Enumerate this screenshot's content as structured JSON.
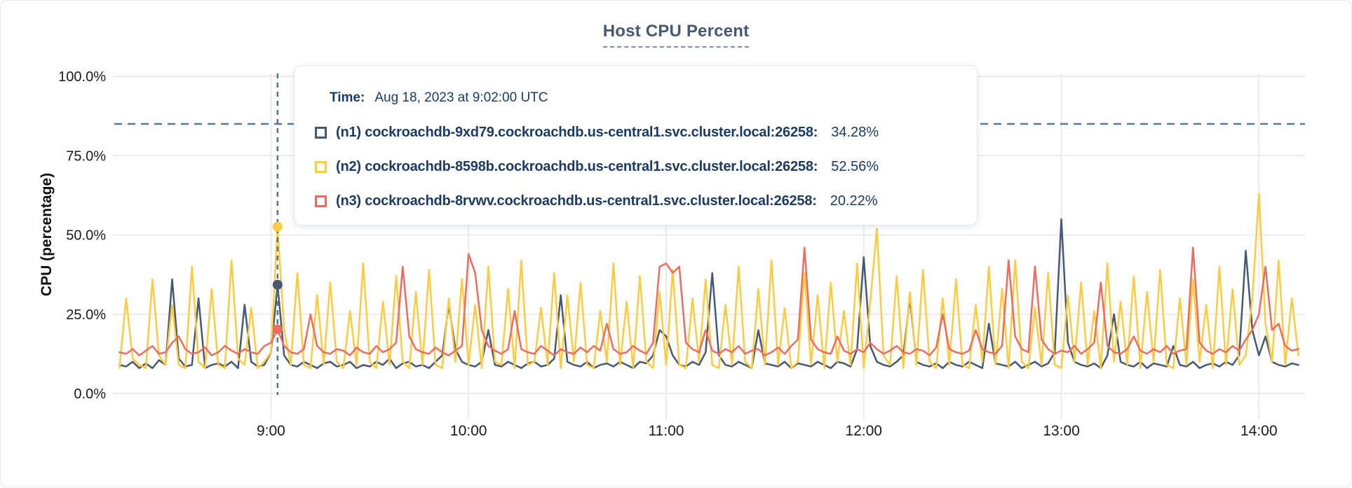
{
  "page": {
    "title": "Host CPU Percent"
  },
  "y_axis": {
    "label": "CPU (percentage)",
    "ticks": [
      {
        "pct": 100,
        "label": "100.0%"
      },
      {
        "pct": 75,
        "label": "75.0%"
      },
      {
        "pct": 50,
        "label": "50.0%"
      },
      {
        "pct": 25,
        "label": "25.0%"
      },
      {
        "pct": 0,
        "label": "0.0%"
      }
    ]
  },
  "x_axis": {
    "ticks": [
      {
        "minute": 540,
        "label": "9:00"
      },
      {
        "minute": 600,
        "label": "10:00"
      },
      {
        "minute": 660,
        "label": "11:00"
      },
      {
        "minute": 720,
        "label": "12:00"
      },
      {
        "minute": 780,
        "label": "13:00"
      },
      {
        "minute": 840,
        "label": "14:00"
      }
    ]
  },
  "tooltip": {
    "time_label": "Time:",
    "time_value": "Aug 18, 2023 at 9:02:00 UTC",
    "rows": [
      {
        "label": "(n1) cockroachdb-9xd79.cockroachdb.us-central1.svc.cluster.local:26258:",
        "value": "34.28%",
        "color": "#475872"
      },
      {
        "label": "(n2) cockroachdb-8598b.cockroachdb.us-central1.svc.cluster.local:26258:",
        "value": "52.56%",
        "color": "#fccb40"
      },
      {
        "label": "(n3) cockroachdb-8rvwv.cockroachdb.us-central1.svc.cluster.local:26258:",
        "value": "20.22%",
        "color": "#ec6c5f"
      }
    ]
  },
  "colors": {
    "title": "#475872",
    "grid": "#ebebeb",
    "tick_text": "#1a1a1a",
    "threshold_line": "#587a8c",
    "hover_line": "#527488",
    "tooltip_text": "#1c3a64"
  },
  "chart_data": {
    "type": "line",
    "title": "Host CPU Percent",
    "xlabel": "",
    "ylabel": "CPU (percentage)",
    "ylim": [
      0,
      100
    ],
    "grid": true,
    "legend_position": "tooltip-overlay",
    "threshold_pct": 85,
    "x_start_min": 494,
    "x_step_min": 2,
    "x_range_min": [
      492,
      854
    ],
    "hover": {
      "index": 24,
      "time_min": 542,
      "time_text": "Aug 18, 2023 at 9:02:00 UTC"
    },
    "series": [
      {
        "name": "(n1) cockroachdb-9xd79.cockroachdb.us-central1.svc.cluster.local:26258",
        "color": "#475872",
        "hover_value_pct": 34.28,
        "values": [
          9,
          8.5,
          10,
          8,
          9.5,
          8,
          10.5,
          9,
          36,
          11,
          8.5,
          9,
          30,
          8,
          9,
          9.5,
          8.5,
          10,
          8,
          28,
          10,
          8.5,
          9,
          13,
          34.3,
          12,
          9,
          8.5,
          10,
          9,
          8,
          9.5,
          10,
          8.5,
          9,
          10,
          8,
          9,
          8.5,
          10,
          9,
          11,
          8,
          9.5,
          10,
          8.5,
          9,
          8,
          10,
          12,
          28,
          14,
          10,
          9,
          8.5,
          10,
          20,
          9,
          8.5,
          10,
          9,
          8,
          9.5,
          10,
          8.5,
          9,
          11,
          31,
          10,
          9,
          8.5,
          10,
          8,
          9,
          9.5,
          8.5,
          10,
          9,
          8,
          10,
          9.5,
          12,
          20,
          18,
          12,
          9,
          8.5,
          10,
          9,
          13,
          38,
          12,
          9,
          8.5,
          10,
          9,
          8,
          20,
          9.5,
          9,
          8.5,
          10,
          8,
          9.5,
          9,
          8.5,
          10,
          9,
          8,
          10,
          9.5,
          8.5,
          14,
          43,
          15,
          10,
          9,
          8.5,
          10,
          12,
          30,
          10,
          9,
          8.5,
          9.5,
          8,
          10,
          9,
          8.5,
          10,
          9,
          8,
          22,
          9.5,
          9,
          8.5,
          10,
          8,
          9,
          10,
          8.5,
          9.5,
          13,
          55,
          16,
          10,
          9,
          8.5,
          9.5,
          8,
          12,
          25,
          10,
          9,
          8.5,
          10,
          8,
          9.5,
          9,
          8.5,
          15,
          9,
          8.5,
          10,
          8,
          9,
          9.5,
          8.5,
          10,
          9,
          12,
          45,
          20,
          12,
          18,
          10,
          9,
          8.5,
          9.5,
          9
        ]
      },
      {
        "name": "(n2) cockroachdb-8598b.cockroachdb.us-central1.svc.cluster.local:26258",
        "color": "#fccb40",
        "hover_value_pct": 52.56,
        "values": [
          8,
          30,
          11,
          9,
          8,
          36,
          12,
          9,
          28,
          9,
          8,
          40,
          10,
          8,
          33,
          9,
          8,
          42,
          11,
          9,
          27,
          8,
          10,
          13,
          52.6,
          20,
          9,
          38,
          9,
          8,
          31,
          9,
          35,
          10,
          8,
          26,
          9,
          41,
          10,
          8,
          29,
          9,
          37,
          10,
          8,
          32,
          9,
          39,
          9,
          8,
          30,
          10,
          36,
          9,
          28,
          8,
          40,
          10,
          9,
          33,
          8,
          42,
          9,
          10,
          27,
          9,
          38,
          8,
          31,
          10,
          35,
          9,
          8,
          26,
          10,
          41,
          9,
          29,
          8,
          37,
          10,
          8,
          32,
          9,
          39,
          9,
          8,
          30,
          10,
          36,
          9,
          8,
          28,
          9,
          40,
          10,
          8,
          33,
          9,
          42,
          9,
          27,
          8,
          10,
          38,
          9,
          31,
          8,
          35,
          10,
          26,
          9,
          41,
          8,
          29,
          52,
          12,
          9,
          37,
          8,
          32,
          9,
          39,
          10,
          8,
          30,
          9,
          36,
          9,
          8,
          28,
          10,
          40,
          9,
          33,
          8,
          42,
          10,
          8,
          27,
          9,
          38,
          9,
          8,
          31,
          10,
          35,
          9,
          26,
          8,
          41,
          10,
          29,
          9,
          37,
          8,
          32,
          10,
          39,
          9,
          8,
          30,
          9,
          36,
          10,
          28,
          8,
          40,
          9,
          33,
          9,
          12,
          30,
          63,
          22,
          10,
          42,
          9,
          30,
          12
        ]
      },
      {
        "name": "(n3) cockroachdb-8rvwv.cockroachdb.us-central1.svc.cluster.local:26258",
        "color": "#ec6c5f",
        "hover_value_pct": 20.22,
        "values": [
          13,
          12.5,
          14,
          12,
          13.5,
          15,
          12.5,
          13,
          16,
          18,
          14,
          12.5,
          13,
          14.5,
          12,
          13,
          15,
          13.5,
          12.5,
          14,
          13,
          12.5,
          15,
          16,
          20.2,
          15,
          13,
          12.5,
          14,
          25,
          15,
          13,
          12.5,
          14,
          13.5,
          12,
          14.5,
          13,
          12.5,
          15,
          13,
          14,
          16,
          40,
          18,
          14,
          13,
          12.5,
          14.5,
          13,
          12,
          13.5,
          15,
          44,
          38,
          20,
          15,
          13.5,
          12.5,
          14,
          26,
          14,
          13,
          12.5,
          15,
          13.5,
          12,
          14,
          13,
          12.5,
          14.5,
          13,
          15,
          13.5,
          22,
          14,
          12.5,
          13,
          15,
          13.5,
          12.5,
          16,
          40,
          41,
          38,
          40,
          16,
          14,
          13,
          20,
          13.5,
          12.5,
          14,
          13,
          15,
          12.5,
          13.5,
          14,
          12,
          13,
          14.5,
          12.5,
          15,
          17,
          46,
          17,
          14,
          13,
          12.5,
          18,
          13.5,
          12.5,
          14,
          13,
          16,
          14,
          12.5,
          13.5,
          15,
          13,
          12.5,
          14,
          13.5,
          12,
          14.5,
          25,
          14,
          13,
          12.5,
          13.5,
          20,
          14,
          13,
          12.5,
          15,
          42,
          18,
          14,
          13,
          40,
          17,
          14,
          12.5,
          13.5,
          13,
          15,
          12.5,
          14,
          16,
          35,
          15,
          13,
          12.5,
          14,
          18,
          13.5,
          12.5,
          14,
          13,
          15,
          12.5,
          13.5,
          14,
          46,
          16,
          13.5,
          12.5,
          14,
          13,
          15,
          13.5,
          17,
          20,
          25,
          40,
          20,
          22,
          15,
          13.5,
          14
        ]
      }
    ]
  }
}
